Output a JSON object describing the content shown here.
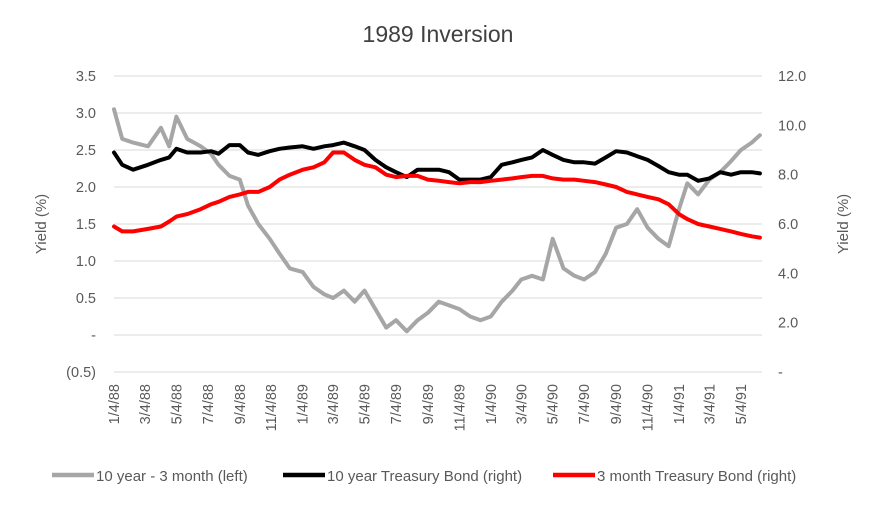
{
  "chart_data": {
    "type": "line",
    "title": "1989 Inversion",
    "ylabel_left": "Yield (%)",
    "ylabel_right": "Yield (%)",
    "ylim_left": [
      -0.5,
      3.5
    ],
    "ylim_right": [
      0,
      12
    ],
    "yticks_left": [
      "3.5",
      "3.0",
      "2.5",
      "2.0",
      "1.5",
      "1.0",
      "0.5",
      "-",
      "(0.5)"
    ],
    "yticks_right": [
      "12.0",
      "10.0",
      "8.0",
      "6.0",
      "4.0",
      "2.0",
      "-"
    ],
    "x_ticks": [
      "1/4/88",
      "3/4/88",
      "5/4/88",
      "7/4/88",
      "9/4/88",
      "11/4/88",
      "1/4/89",
      "3/4/89",
      "5/4/89",
      "7/4/89",
      "9/4/89",
      "11/4/89",
      "1/4/90",
      "3/4/90",
      "5/4/90",
      "7/4/90",
      "9/4/90",
      "11/4/90",
      "1/4/91",
      "3/4/91",
      "5/4/91"
    ],
    "grid": "horizontal",
    "legend_position": "bottom",
    "series": [
      {
        "name": "10 year - 3 month (left)",
        "axis": "left",
        "color": "#a6a6a6",
        "x": [
          "1988-01-04",
          "1988-01-20",
          "1988-02-10",
          "1988-03-10",
          "1988-04-04",
          "1988-04-20",
          "1988-05-04",
          "1988-05-25",
          "1988-06-20",
          "1988-07-10",
          "1988-07-25",
          "1988-08-15",
          "1988-09-04",
          "1988-09-20",
          "1988-10-10",
          "1988-11-01",
          "1988-11-20",
          "1988-12-10",
          "1989-01-04",
          "1989-01-25",
          "1989-02-15",
          "1989-03-04",
          "1989-03-25",
          "1989-04-15",
          "1989-05-04",
          "1989-05-25",
          "1989-06-15",
          "1989-07-04",
          "1989-07-25",
          "1989-08-15",
          "1989-09-04",
          "1989-09-25",
          "1989-10-15",
          "1989-11-04",
          "1989-11-25",
          "1989-12-15",
          "1990-01-04",
          "1990-01-25",
          "1990-02-15",
          "1990-03-04",
          "1990-03-25",
          "1990-04-15",
          "1990-05-04",
          "1990-05-25",
          "1990-06-15",
          "1990-07-04",
          "1990-07-25",
          "1990-08-15",
          "1990-09-04",
          "1990-09-25",
          "1990-10-15",
          "1990-11-04",
          "1990-11-25",
          "1990-12-15",
          "1991-01-04",
          "1991-01-20",
          "1991-02-10",
          "1991-03-04",
          "1991-03-25",
          "1991-04-15",
          "1991-05-04",
          "1991-05-25",
          "1991-06-10"
        ],
        "values": [
          3.05,
          2.65,
          2.6,
          2.55,
          2.8,
          2.55,
          2.95,
          2.65,
          2.55,
          2.45,
          2.3,
          2.15,
          2.1,
          1.75,
          1.5,
          1.3,
          1.1,
          0.9,
          0.85,
          0.65,
          0.55,
          0.5,
          0.6,
          0.45,
          0.6,
          0.35,
          0.1,
          0.2,
          0.05,
          0.2,
          0.3,
          0.45,
          0.4,
          0.35,
          0.25,
          0.2,
          0.25,
          0.45,
          0.6,
          0.75,
          0.8,
          0.75,
          1.3,
          0.9,
          0.8,
          0.75,
          0.85,
          1.1,
          1.45,
          1.5,
          1.7,
          1.45,
          1.3,
          1.2,
          1.7,
          2.05,
          1.9,
          2.1,
          2.2,
          2.35,
          2.5,
          2.6,
          2.7
        ]
      },
      {
        "name": "10 year Treasury Bond (right)",
        "axis": "right",
        "color": "#000000",
        "x": [
          "1988-01-04",
          "1988-01-20",
          "1988-02-10",
          "1988-03-10",
          "1988-04-04",
          "1988-04-20",
          "1988-05-04",
          "1988-05-25",
          "1988-06-20",
          "1988-07-10",
          "1988-07-25",
          "1988-08-15",
          "1988-09-04",
          "1988-09-20",
          "1988-10-10",
          "1988-11-01",
          "1988-11-20",
          "1988-12-10",
          "1989-01-04",
          "1989-01-25",
          "1989-02-15",
          "1989-03-04",
          "1989-03-25",
          "1989-04-15",
          "1989-05-04",
          "1989-05-25",
          "1989-06-15",
          "1989-07-04",
          "1989-07-25",
          "1989-08-15",
          "1989-09-04",
          "1989-09-25",
          "1989-10-15",
          "1989-11-04",
          "1989-11-25",
          "1989-12-15",
          "1990-01-04",
          "1990-01-25",
          "1990-02-15",
          "1990-03-04",
          "1990-03-25",
          "1990-04-15",
          "1990-05-04",
          "1990-05-25",
          "1990-06-15",
          "1990-07-04",
          "1990-07-25",
          "1990-08-15",
          "1990-09-04",
          "1990-09-25",
          "1990-10-15",
          "1990-11-04",
          "1990-11-25",
          "1990-12-15",
          "1991-01-04",
          "1991-01-20",
          "1991-02-10",
          "1991-03-04",
          "1991-03-25",
          "1991-04-15",
          "1991-05-04",
          "1991-05-25",
          "1991-06-10"
        ],
        "values": [
          8.9,
          8.4,
          8.2,
          8.4,
          8.6,
          8.7,
          9.05,
          8.9,
          8.9,
          8.95,
          8.85,
          9.2,
          9.2,
          8.9,
          8.8,
          8.95,
          9.05,
          9.1,
          9.15,
          9.05,
          9.15,
          9.2,
          9.3,
          9.15,
          9.0,
          8.6,
          8.3,
          8.1,
          7.9,
          8.2,
          8.2,
          8.2,
          8.1,
          7.8,
          7.8,
          7.8,
          7.9,
          8.4,
          8.5,
          8.6,
          8.7,
          9.0,
          8.8,
          8.6,
          8.5,
          8.5,
          8.45,
          8.7,
          8.95,
          8.9,
          8.75,
          8.6,
          8.35,
          8.1,
          8.0,
          8.0,
          7.75,
          7.85,
          8.1,
          8.0,
          8.1,
          8.1,
          8.05
        ]
      },
      {
        "name": "3 month Treasury Bond (right)",
        "axis": "right",
        "color": "#ff0000",
        "x": [
          "1988-01-04",
          "1988-01-20",
          "1988-02-10",
          "1988-03-10",
          "1988-04-04",
          "1988-04-20",
          "1988-05-04",
          "1988-05-25",
          "1988-06-20",
          "1988-07-10",
          "1988-07-25",
          "1988-08-15",
          "1988-09-04",
          "1988-09-20",
          "1988-10-10",
          "1988-11-01",
          "1988-11-20",
          "1988-12-10",
          "1989-01-04",
          "1989-01-25",
          "1989-02-15",
          "1989-03-04",
          "1989-03-25",
          "1989-04-15",
          "1989-05-04",
          "1989-05-25",
          "1989-06-15",
          "1989-07-04",
          "1989-07-25",
          "1989-08-15",
          "1989-09-04",
          "1989-09-25",
          "1989-10-15",
          "1989-11-04",
          "1989-11-25",
          "1989-12-15",
          "1990-01-04",
          "1990-01-25",
          "1990-02-15",
          "1990-03-04",
          "1990-03-25",
          "1990-04-15",
          "1990-05-04",
          "1990-05-25",
          "1990-06-15",
          "1990-07-04",
          "1990-07-25",
          "1990-08-15",
          "1990-09-04",
          "1990-09-25",
          "1990-10-15",
          "1990-11-04",
          "1990-11-25",
          "1990-12-15",
          "1991-01-04",
          "1991-01-20",
          "1991-02-10",
          "1991-03-04",
          "1991-03-25",
          "1991-04-15",
          "1991-05-04",
          "1991-05-25",
          "1991-06-10"
        ],
        "values": [
          5.9,
          5.7,
          5.7,
          5.8,
          5.9,
          6.1,
          6.3,
          6.4,
          6.6,
          6.8,
          6.9,
          7.1,
          7.2,
          7.3,
          7.3,
          7.5,
          7.8,
          8.0,
          8.2,
          8.3,
          8.5,
          8.9,
          8.9,
          8.6,
          8.4,
          8.3,
          8.0,
          7.9,
          7.95,
          7.95,
          7.8,
          7.75,
          7.7,
          7.65,
          7.7,
          7.7,
          7.75,
          7.8,
          7.85,
          7.9,
          7.95,
          7.95,
          7.85,
          7.8,
          7.8,
          7.75,
          7.7,
          7.6,
          7.5,
          7.3,
          7.2,
          7.1,
          7.0,
          6.8,
          6.4,
          6.2,
          6.0,
          5.9,
          5.8,
          5.7,
          5.6,
          5.5,
          5.45
        ]
      }
    ]
  }
}
